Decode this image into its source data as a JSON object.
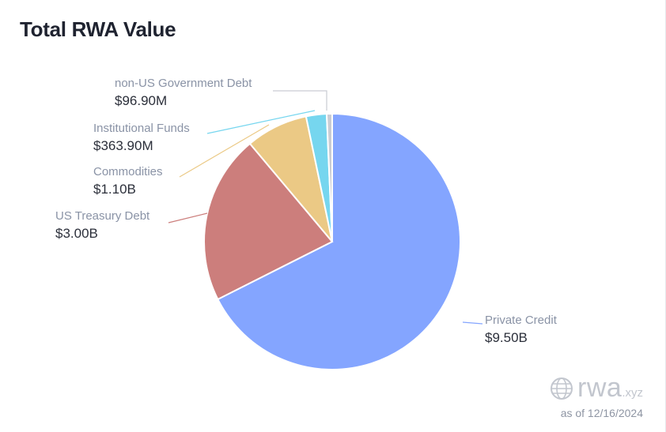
{
  "title": "Total RWA Value",
  "brand": {
    "name": "rwa",
    "suffix": ".xyz",
    "icon": "globe-icon"
  },
  "as_of": "as of 12/16/2024",
  "chart_data": {
    "type": "pie",
    "title": "Total RWA Value",
    "slices": [
      {
        "name": "Private Credit",
        "value": 9500,
        "label": "$9.50B",
        "color": "#84a5ff"
      },
      {
        "name": "US Treasury Debt",
        "value": 3000,
        "label": "$3.00B",
        "color": "#cc7e7c"
      },
      {
        "name": "Commodities",
        "value": 1100,
        "label": "$1.10B",
        "color": "#ebc985"
      },
      {
        "name": "Institutional Funds",
        "value": 363.9,
        "label": "$363.90M",
        "color": "#76d6ef"
      },
      {
        "name": "non-US Government Debt",
        "value": 96.9,
        "label": "$96.90M",
        "color": "#c9ccd3"
      }
    ],
    "value_units": "millions USD"
  }
}
